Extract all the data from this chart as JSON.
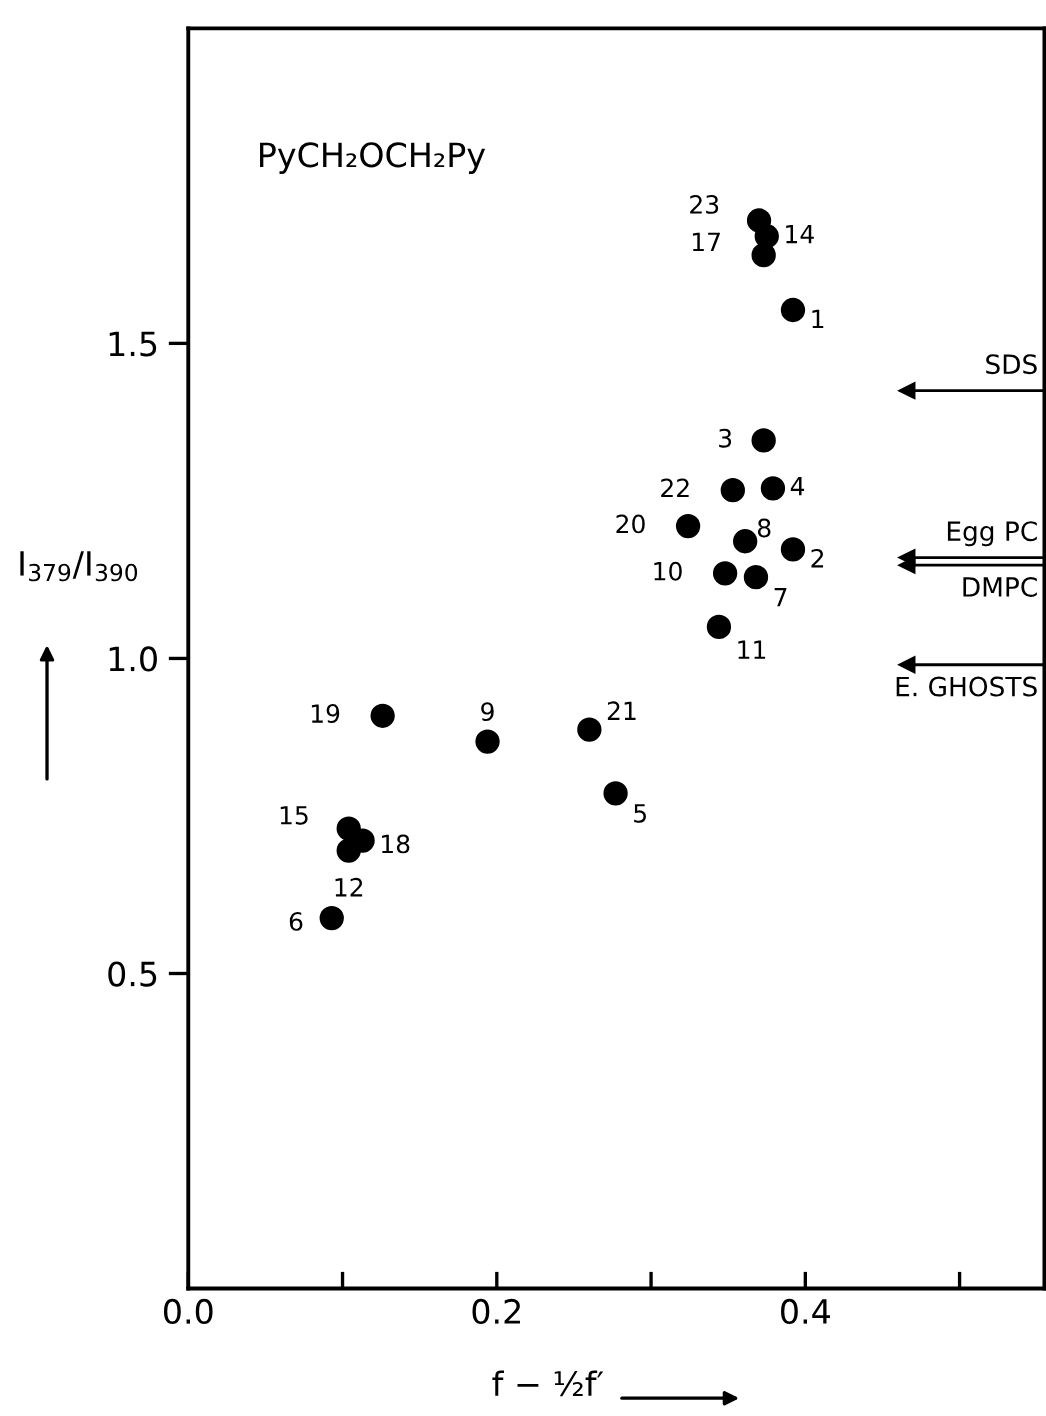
{
  "chart_data": {
    "type": "scatter",
    "xlabel": "f − ½f′",
    "ylabel": "I$_{379}$/I$_{390}$",
    "x": [
      0.392,
      0.392,
      0.373,
      0.379,
      0.277,
      0.093,
      0.368,
      0.361,
      0.194,
      0.348,
      0.344,
      0.104,
      0.375,
      0.104,
      0.373,
      0.113,
      0.126,
      0.324,
      0.26,
      0.353,
      0.37
    ],
    "series": [
      {
        "color": "#000000",
        "values": [
          1.553,
          1.173,
          1.346,
          1.27,
          0.786,
          0.588,
          1.129,
          1.186,
          0.868,
          1.135,
          1.05,
          0.695,
          1.67,
          0.73,
          1.64,
          0.711,
          0.909,
          1.21,
          0.887,
          1.267,
          1.695
        ]
      }
    ],
    "annotations": [
      "PyCH₂OCH₂Py",
      {
        "text": "1",
        "x": 0.392,
        "y": 1.553
      },
      {
        "text": "2",
        "x": 0.392,
        "y": 1.173
      },
      {
        "text": "3",
        "x": 0.373,
        "y": 1.346
      },
      {
        "text": "4",
        "x": 0.379,
        "y": 1.27
      },
      {
        "text": "5",
        "x": 0.277,
        "y": 0.786
      },
      {
        "text": "6",
        "x": 0.093,
        "y": 0.588
      },
      {
        "text": "7",
        "x": 0.368,
        "y": 1.129
      },
      {
        "text": "8",
        "x": 0.361,
        "y": 1.186
      },
      {
        "text": "9",
        "x": 0.194,
        "y": 0.868
      },
      {
        "text": "10",
        "x": 0.348,
        "y": 1.135
      },
      {
        "text": "11",
        "x": 0.344,
        "y": 1.05
      },
      {
        "text": "12",
        "x": 0.104,
        "y": 0.695
      },
      {
        "text": "14",
        "x": 0.375,
        "y": 1.67
      },
      {
        "text": "15",
        "x": 0.104,
        "y": 0.73
      },
      {
        "text": "17",
        "x": 0.373,
        "y": 1.64
      },
      {
        "text": "18",
        "x": 0.113,
        "y": 0.711
      },
      {
        "text": "19",
        "x": 0.126,
        "y": 0.909
      },
      {
        "text": "20",
        "x": 0.324,
        "y": 1.21
      },
      {
        "text": "21",
        "x": 0.26,
        "y": 0.887
      },
      {
        "text": "22",
        "x": 0.353,
        "y": 1.267
      },
      {
        "text": "23",
        "x": 0.37,
        "y": 1.695
      }
    ],
    "ref_lines": [
      {
        "axis": "y",
        "value": 1.425,
        "label": "SDS"
      },
      {
        "axis": "y",
        "value": 1.16,
        "label": "Egg PC"
      },
      {
        "axis": "y",
        "value": 1.148,
        "label": "DMPC"
      },
      {
        "axis": "y",
        "value": 0.99,
        "label": "E. GHOSTS"
      }
    ],
    "xlim": [
      0,
      0.555
    ],
    "ylim": [
      0,
      2.0
    ],
    "xticks": [
      {
        "value": 0,
        "label": "0.0"
      },
      {
        "value": 0.1,
        "label": null
      },
      0.2,
      {
        "value": 0.3,
        "label": null
      },
      0.4,
      {
        "value": 0.5,
        "label": null
      }
    ],
    "yticks": [
      0.5,
      {
        "value": 1,
        "label": "1.0"
      },
      1.5
    ],
    "marker": "circle",
    "grid": false
  }
}
